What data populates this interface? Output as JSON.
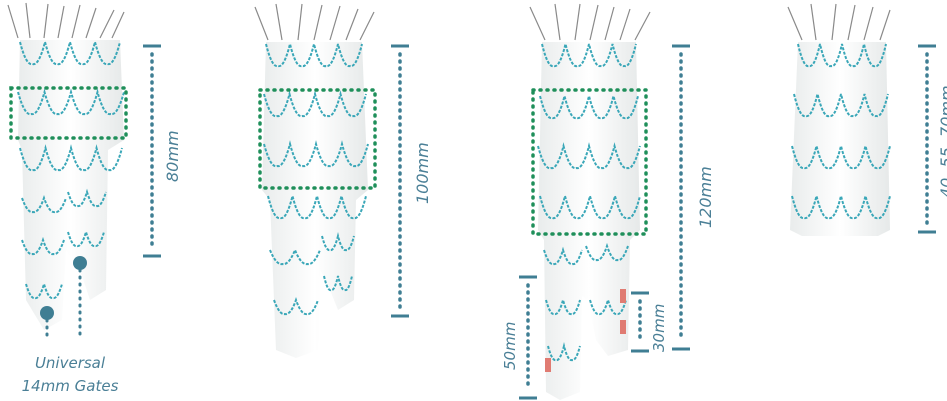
{
  "labels": {
    "graft1_length": "80mm",
    "graft2_length": "100mm",
    "graft3_length": "120mm",
    "graft3_leg_long": "50mm",
    "graft3_leg_short": "30mm",
    "graft4_length": "40, 55, 70mm",
    "gates_line1": "Universal",
    "gates_line2": "14mm Gates"
  },
  "colors": {
    "dimension": "#3f7e93",
    "highlight_box": "#1f8f5a",
    "stent_wire": "#3aa7b8",
    "fabric": "#f6f7f7",
    "marker": "#e07b72",
    "gate_marker": "#3f7e93",
    "label": "#4a7f96"
  }
}
